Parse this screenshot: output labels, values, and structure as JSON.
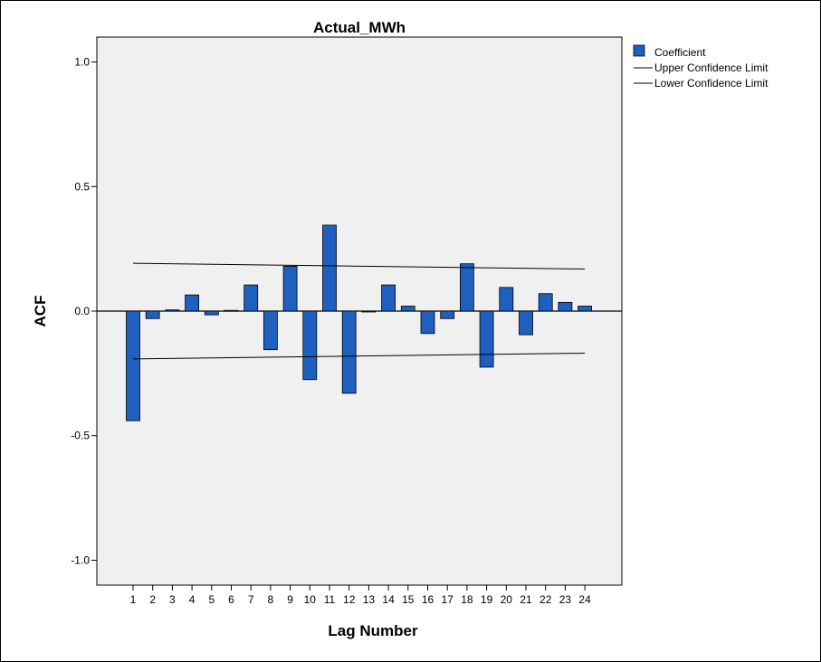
{
  "chart_data": {
    "type": "bar",
    "title": "Actual_MWh",
    "xlabel": "Lag Number",
    "ylabel": "ACF",
    "ylim": [
      -1.1,
      1.1
    ],
    "yticks": [
      1.0,
      0.5,
      0.0,
      -0.5,
      -1.0
    ],
    "ytick_labels": [
      "1.0",
      "0.5",
      "0.0",
      "-0.5",
      "-1.0"
    ],
    "categories": [
      "1",
      "2",
      "3",
      "4",
      "5",
      "6",
      "7",
      "8",
      "9",
      "10",
      "11",
      "12",
      "13",
      "14",
      "15",
      "16",
      "17",
      "18",
      "19",
      "20",
      "21",
      "22",
      "23",
      "24"
    ],
    "series": [
      {
        "name": "Coefficient",
        "color": "#1f5fbf",
        "values": [
          -0.44,
          -0.03,
          0.005,
          0.065,
          -0.015,
          0.003,
          0.105,
          -0.155,
          0.18,
          -0.275,
          0.345,
          -0.33,
          -0.003,
          0.105,
          0.02,
          -0.09,
          -0.03,
          0.19,
          -0.225,
          0.095,
          -0.095,
          0.07,
          0.035,
          0.02
        ]
      }
    ],
    "upper_confidence_limit": {
      "name": "Upper Confidence Limit",
      "start": 0.192,
      "end": 0.169
    },
    "lower_confidence_limit": {
      "name": "Lower Confidence Limit",
      "start": -0.192,
      "end": -0.169
    },
    "legend": {
      "placement": "top-right",
      "entries": [
        "Coefficient",
        "Upper Confidence Limit",
        "Lower Confidence Limit"
      ]
    },
    "plot_background": "#f0f0f0",
    "grid": false
  }
}
